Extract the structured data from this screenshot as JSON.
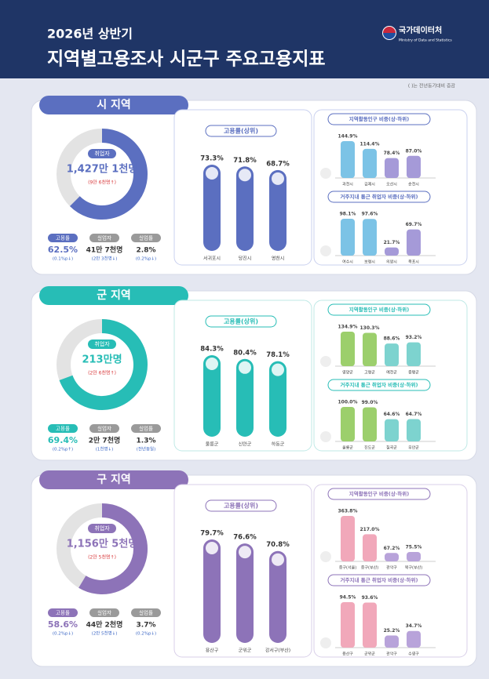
{
  "header": {
    "subtitle": "2026년 상반기",
    "title": "지역별고용조사 시군구 주요고용지표",
    "logo_text": "국가데이터처",
    "logo_sub": "Ministry of Data and Statistics",
    "note": "( )는 전년동기대비 증감"
  },
  "sections": [
    {
      "title": "시 지역",
      "donut": {
        "label": "취업자",
        "value": "1,427만 1천명",
        "change": "(9만 6천명↑)"
      },
      "stats": [
        {
          "label": "고용률",
          "value": 62.5,
          "value_label": "62.5%",
          "change": "(0.1%p↓)"
        },
        {
          "label": "실업자",
          "value_label": "41만 7천명",
          "change": "(2만 3천명↓)"
        },
        {
          "label": "실업률",
          "value_label": "2.8%",
          "change": "(0.2%p↓)"
        }
      ],
      "bar_chart": {
        "title": "고용률(상위)",
        "categories": [
          "서귀포시",
          "당진시",
          "영천시"
        ],
        "values": [
          73.3,
          71.8,
          68.7
        ],
        "value_labels": [
          "73.3%",
          "71.8%",
          "68.7%"
        ]
      },
      "small_charts": [
        {
          "title": "지역활동인구 비중(상·하위)",
          "categories": [
            "과천시",
            "김제시",
            "오산시",
            "순천시"
          ],
          "values": [
            144.9,
            114.4,
            78.4,
            87.0
          ],
          "value_labels": [
            "144.9%",
            "114.4%",
            "78.4%",
            "87.0%"
          ]
        },
        {
          "title": "거주지내 통근 취업자 비중(상·하위)",
          "categories": [
            "여수시",
            "보령시",
            "의왕시",
            "목포시"
          ],
          "values": [
            98.1,
            97.6,
            21.7,
            69.7
          ],
          "value_labels": [
            "98.1%",
            "97.6%",
            "21.7%",
            "69.7%"
          ]
        }
      ]
    },
    {
      "title": "군 지역",
      "donut": {
        "label": "취업자",
        "value": "213만명",
        "change": "(2만 6천명↑)"
      },
      "stats": [
        {
          "label": "고용률",
          "value": 69.4,
          "value_label": "69.4%",
          "change": "(0.2%p↑)"
        },
        {
          "label": "실업자",
          "value_label": "2만 7천명",
          "change": "(1천명↓)"
        },
        {
          "label": "실업률",
          "value_label": "1.3%",
          "change": "(전년동일)"
        }
      ],
      "bar_chart": {
        "title": "고용률(상위)",
        "categories": [
          "울릉군",
          "신안군",
          "하동군"
        ],
        "values": [
          84.3,
          80.4,
          78.1
        ],
        "value_labels": [
          "84.3%",
          "80.4%",
          "78.1%"
        ]
      },
      "small_charts": [
        {
          "title": "지역활동인구 비중(상·하위)",
          "categories": [
            "영양군",
            "고령군",
            "예천군",
            "증평군"
          ],
          "values": [
            134.9,
            130.3,
            88.6,
            93.2
          ],
          "value_labels": [
            "134.9%",
            "130.3%",
            "88.6%",
            "93.2%"
          ]
        },
        {
          "title": "거주지내 통근 취업자 비중(상·하위)",
          "categories": [
            "울릉군",
            "진도군",
            "칠곡군",
            "무안군"
          ],
          "values": [
            100.0,
            99.0,
            64.6,
            64.7
          ],
          "value_labels": [
            "100.0%",
            "99.0%",
            "64.6%",
            "64.7%"
          ]
        }
      ]
    },
    {
      "title": "구 지역",
      "donut": {
        "label": "취업자",
        "value": "1,156만 5천명",
        "change": "(2만 5천명↑)"
      },
      "stats": [
        {
          "label": "고용률",
          "value": 58.6,
          "value_label": "58.6%",
          "change": "(0.2%p↓)"
        },
        {
          "label": "실업자",
          "value_label": "44만 2천명",
          "change": "(2만 5천명↓)"
        },
        {
          "label": "실업률",
          "value_label": "3.7%",
          "change": "(0.2%p↓)"
        }
      ],
      "bar_chart": {
        "title": "고용률(상위)",
        "categories": [
          "용산구",
          "군위군",
          "강서구(부산)"
        ],
        "values": [
          79.7,
          76.6,
          70.8
        ],
        "value_labels": [
          "79.7%",
          "76.6%",
          "70.8%"
        ]
      },
      "small_charts": [
        {
          "title": "지역활동인구 비중(상·하위)",
          "categories": [
            "중구(서울)",
            "중구(부산)",
            "관악구",
            "북구(부산)"
          ],
          "values": [
            363.8,
            217.0,
            67.2,
            75.5
          ],
          "value_labels": [
            "363.8%",
            "217.0%",
            "67.2%",
            "75.5%"
          ]
        },
        {
          "title": "거주지내 통근 취업자 비중(상·하위)",
          "categories": [
            "용산구",
            "군위군",
            "관악구",
            "수영구"
          ],
          "values": [
            94.5,
            93.6,
            25.2,
            34.7
          ],
          "value_labels": [
            "94.5%",
            "93.6%",
            "25.2%",
            "34.7%"
          ]
        }
      ]
    }
  ]
}
